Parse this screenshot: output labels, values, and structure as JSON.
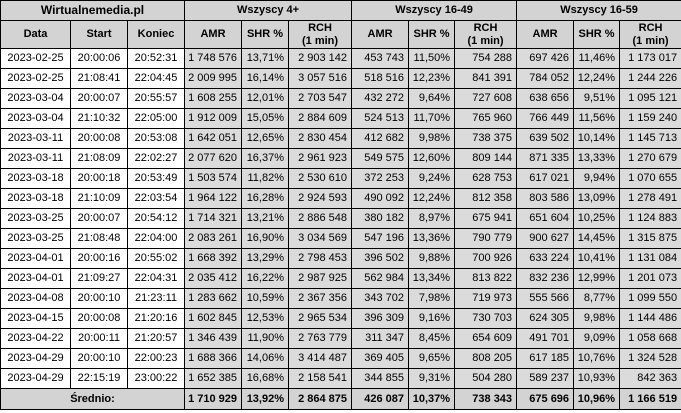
{
  "colors": {
    "header_bg": "#d3d3d3",
    "stat_bg": "#dbdbdb",
    "row_bg": "#ffffff",
    "border": "#000000"
  },
  "chart_data": {
    "type": "table",
    "title": "Wirtualnemedia.pl",
    "column_groups": [
      {
        "label": "Wszyscy 4+",
        "span": 3
      },
      {
        "label": "Wszyscy 16-49",
        "span": 3
      },
      {
        "label": "Wszyscy 16-59",
        "span": 3
      }
    ],
    "columns": [
      "Data",
      "Start",
      "Koniec",
      "AMR",
      "SHR %",
      "RCH\n(1 min)",
      "AMR",
      "SHR %",
      "RCH\n(1 min)",
      "AMR",
      "SHR %",
      "RCH\n(1 min)"
    ],
    "rows": [
      [
        "2023-02-25",
        "20:00:06",
        "20:52:31",
        "1 748 576",
        "13,71%",
        "2 903 142",
        "453 743",
        "11,50%",
        "754 288",
        "697 426",
        "11,46%",
        "1 173 017"
      ],
      [
        "2023-02-25",
        "21:08:41",
        "22:04:45",
        "2 009 995",
        "16,14%",
        "3 057 516",
        "518 516",
        "12,23%",
        "841 391",
        "784 052",
        "12,24%",
        "1 244 226"
      ],
      [
        "2023-03-04",
        "20:00:07",
        "20:55:57",
        "1 608 255",
        "12,01%",
        "2 703 547",
        "432 272",
        "9,64%",
        "727 608",
        "638 656",
        "9,51%",
        "1 095 121"
      ],
      [
        "2023-03-04",
        "21:10:32",
        "22:05:00",
        "1 912 009",
        "15,05%",
        "2 884 609",
        "524 513",
        "11,70%",
        "765 960",
        "766 449",
        "11,56%",
        "1 159 240"
      ],
      [
        "2023-03-11",
        "20:00:08",
        "20:53:08",
        "1 642 051",
        "12,65%",
        "2 830 454",
        "412 682",
        "9,98%",
        "738 375",
        "639 502",
        "10,14%",
        "1 145 713"
      ],
      [
        "2023-03-11",
        "21:08:09",
        "22:02:27",
        "2 077 620",
        "16,37%",
        "2 961 923",
        "549 575",
        "12,60%",
        "809 144",
        "871 335",
        "13,33%",
        "1 270 679"
      ],
      [
        "2023-03-18",
        "20:00:18",
        "20:53:49",
        "1 503 574",
        "11,82%",
        "2 530 610",
        "372 253",
        "9,24%",
        "628 753",
        "617 021",
        "9,94%",
        "1 070 655"
      ],
      [
        "2023-03-18",
        "21:10:09",
        "22:03:54",
        "1 964 122",
        "16,28%",
        "2 924 593",
        "490 092",
        "12,24%",
        "812 358",
        "803 586",
        "13,09%",
        "1 278 491"
      ],
      [
        "2023-03-25",
        "20:00:07",
        "20:54:12",
        "1 714 321",
        "13,21%",
        "2 886 548",
        "380 182",
        "8,97%",
        "675 941",
        "651 604",
        "10,25%",
        "1 124 883"
      ],
      [
        "2023-03-25",
        "21:08:48",
        "22:04:00",
        "2 083 261",
        "16,90%",
        "3 034 569",
        "547 196",
        "13,36%",
        "790 779",
        "900 627",
        "14,45%",
        "1 315 875"
      ],
      [
        "2023-04-01",
        "20:00:16",
        "20:55:02",
        "1 668 392",
        "13,29%",
        "2 798 453",
        "396 502",
        "9,88%",
        "700 926",
        "633 224",
        "10,41%",
        "1 131 084"
      ],
      [
        "2023-04-01",
        "21:09:27",
        "22:04:31",
        "2 035 412",
        "16,22%",
        "2 987 925",
        "562 984",
        "13,34%",
        "813 822",
        "832 236",
        "12,99%",
        "1 201 073"
      ],
      [
        "2023-04-08",
        "20:00:10",
        "21:23:11",
        "1 283 662",
        "10,59%",
        "2 367 356",
        "343 702",
        "7,98%",
        "719 973",
        "555 566",
        "8,77%",
        "1 099 550"
      ],
      [
        "2023-04-15",
        "20:00:08",
        "21:20:16",
        "1 602 845",
        "12,53%",
        "2 965 534",
        "396 309",
        "9,16%",
        "730 703",
        "624 305",
        "9,98%",
        "1 144 486"
      ],
      [
        "2023-04-22",
        "20:00:11",
        "21:20:57",
        "1 346 439",
        "11,90%",
        "2 763 779",
        "311 347",
        "8,45%",
        "654 609",
        "491 701",
        "9,09%",
        "1 058 668"
      ],
      [
        "2023-04-29",
        "20:00:10",
        "22:00:23",
        "1 688 366",
        "14,06%",
        "3 414 487",
        "369 405",
        "9,65%",
        "808 205",
        "617 185",
        "10,76%",
        "1 324 528"
      ],
      [
        "2023-04-29",
        "22:15:19",
        "23:00:22",
        "1 652 385",
        "16,68%",
        "2 158 541",
        "344 855",
        "9,31%",
        "504 280",
        "589 237",
        "10,93%",
        "842 363"
      ]
    ],
    "footer": {
      "label": "Średnio:",
      "values": [
        "1 710 929",
        "13,92%",
        "2 864 875",
        "426 087",
        "10,37%",
        "738 343",
        "675 696",
        "10,96%",
        "1 166 519"
      ]
    }
  }
}
